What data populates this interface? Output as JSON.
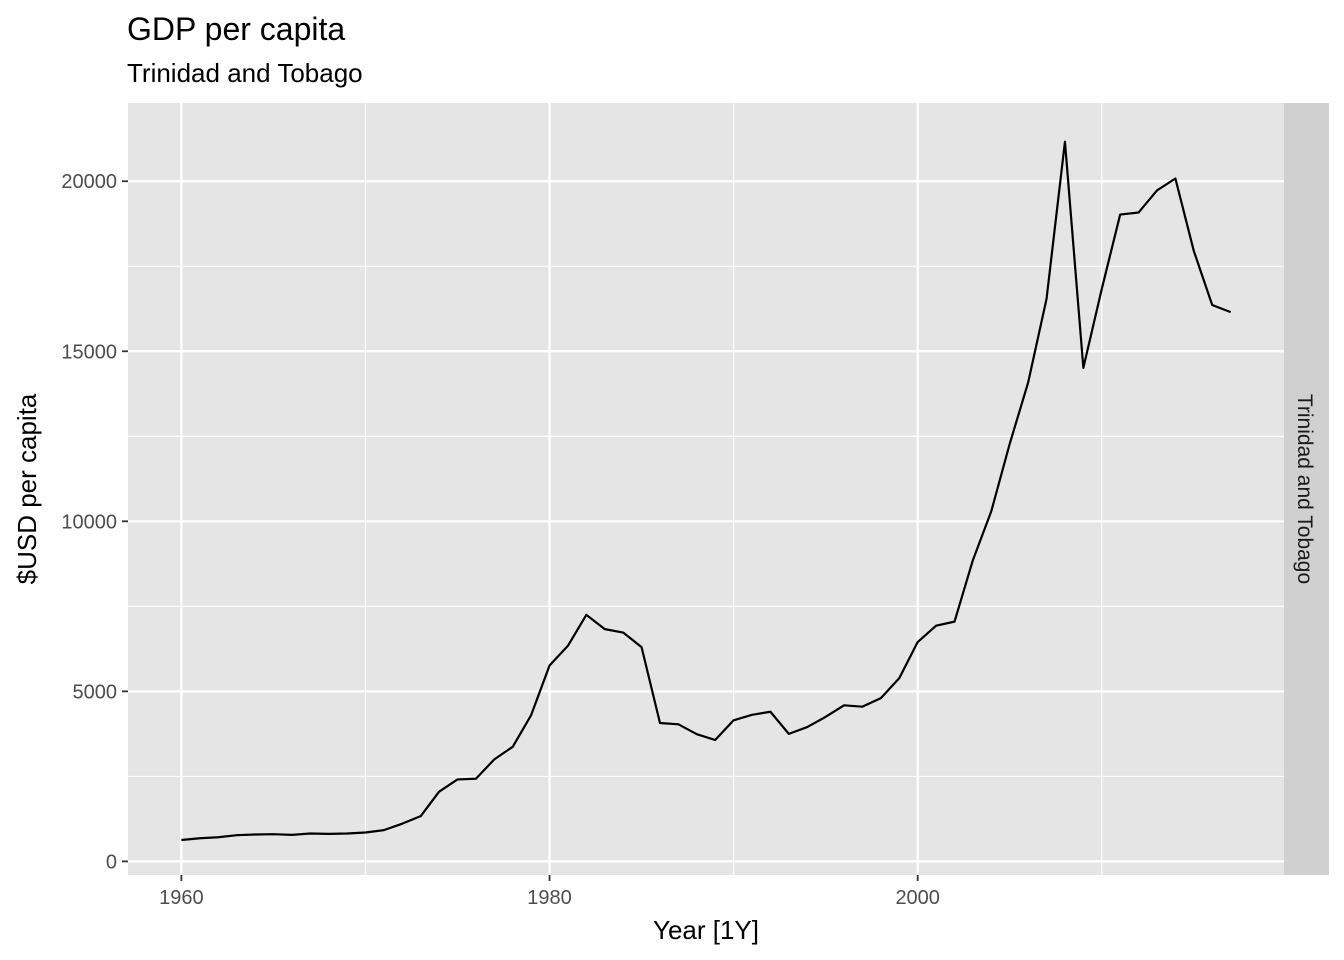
{
  "chart_data": {
    "type": "line",
    "title": "GDP per capita",
    "subtitle": "Trinidad and Tobago",
    "xlabel": "Year [1Y]",
    "ylabel": "$USD per capita",
    "facet_label": "Trinidad and Tobago",
    "xlim": [
      1957.1,
      2019.9
    ],
    "ylim": [
      -400,
      22300
    ],
    "x_ticks": [
      1960,
      1980,
      2000
    ],
    "x_tick_labels": [
      "1960",
      "1980",
      "2000"
    ],
    "x_minor_ticks": [
      1970,
      1990,
      2010
    ],
    "y_ticks": [
      0,
      5000,
      10000,
      15000,
      20000
    ],
    "y_tick_labels": [
      "0",
      "5000",
      "10000",
      "15000",
      "20000"
    ],
    "y_minor_ticks": [
      2500,
      7500,
      12500,
      17500
    ],
    "grid": true,
    "colors": {
      "panel": "#e5e5e5",
      "grid": "#ffffff",
      "strip": "#d0d0d0",
      "line": "#000000"
    },
    "series": [
      {
        "x": [
          1960,
          1961,
          1962,
          1963,
          1964,
          1965,
          1966,
          1967,
          1968,
          1969,
          1970,
          1971,
          1972,
          1973,
          1974,
          1975,
          1976,
          1977,
          1978,
          1979,
          1980,
          1981,
          1982,
          1983,
          1984,
          1985,
          1986,
          1987,
          1988,
          1989,
          1990,
          1991,
          1992,
          1993,
          1994,
          1995,
          1996,
          1997,
          1998,
          1999,
          2000,
          2001,
          2002,
          2003,
          2004,
          2005,
          2006,
          2007,
          2008,
          2009,
          2010,
          2011,
          2012,
          2013,
          2014,
          2015,
          2016,
          2017
        ],
        "values": [
          630,
          680,
          710,
          770,
          790,
          800,
          780,
          820,
          810,
          820,
          850,
          920,
          1110,
          1330,
          2050,
          2410,
          2430,
          3000,
          3370,
          4300,
          5760,
          6340,
          7250,
          6830,
          6730,
          6300,
          4070,
          4030,
          3740,
          3570,
          4150,
          4310,
          4400,
          3750,
          3950,
          4250,
          4590,
          4550,
          4800,
          5390,
          6450,
          6930,
          7050,
          8860,
          10300,
          12280,
          14080,
          16540,
          21160,
          14510,
          16830,
          19020,
          19080,
          19730,
          20080,
          17950,
          16360,
          16150
        ]
      }
    ]
  }
}
